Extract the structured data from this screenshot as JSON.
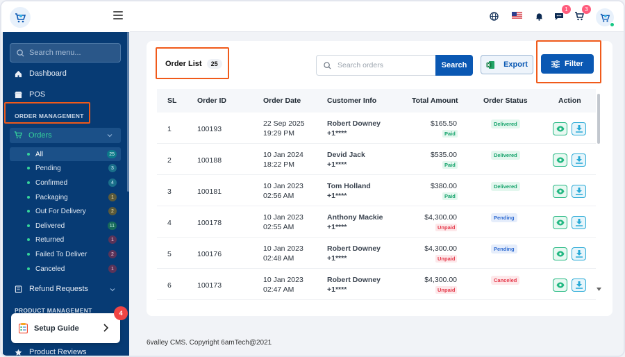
{
  "header": {
    "notifications": {
      "messages_count": "1",
      "cart_count": "3"
    }
  },
  "sidebar": {
    "search_placeholder": "Search menu...",
    "dashboard": "Dashboard",
    "pos": "POS",
    "order_management": "ORDER MANAGEMENT",
    "orders": "Orders",
    "sub_items": [
      {
        "label": "All",
        "count": "25"
      },
      {
        "label": "Pending",
        "count": "3"
      },
      {
        "label": "Confirmed",
        "count": "4"
      },
      {
        "label": "Packaging",
        "count": "1"
      },
      {
        "label": "Out For Delivery",
        "count": "2"
      },
      {
        "label": "Delivered",
        "count": "11"
      },
      {
        "label": "Returned",
        "count": "1"
      },
      {
        "label": "Failed To Deliver",
        "count": "2"
      },
      {
        "label": "Canceled",
        "count": "1"
      }
    ],
    "refund_requests": "Refund Requests",
    "product_management": "PRODUCT MANAGEMENT",
    "product_reviews": "Product Reviews"
  },
  "setup_guide": {
    "label": "Setup Guide",
    "badge": "4"
  },
  "main": {
    "title": "Order List",
    "count": "25",
    "search_placeholder": "Search orders",
    "search_button": "Search",
    "export_button": "Export",
    "filter_button": "Filter",
    "columns": [
      "SL",
      "Order ID",
      "Order Date",
      "Customer Info",
      "Total Amount",
      "Order Status",
      "Action"
    ],
    "rows": [
      {
        "sl": "1",
        "id": "100193",
        "date": "22 Sep 2025",
        "time": "19:29 PM",
        "customer": "Robert Downey",
        "phone": "+1****",
        "amount": "$165.50",
        "payment": "Paid",
        "status": "Delivered"
      },
      {
        "sl": "2",
        "id": "100188",
        "date": "10 Jan 2024",
        "time": "18:22 PM",
        "customer": "Devid Jack",
        "phone": "+1****",
        "amount": "$535.00",
        "payment": "Paid",
        "status": "Delivered"
      },
      {
        "sl": "3",
        "id": "100181",
        "date": "10 Jan 2023",
        "time": "02:56 AM",
        "customer": "Tom Holland",
        "phone": "+1****",
        "amount": "$380.00",
        "payment": "Paid",
        "status": "Delivered"
      },
      {
        "sl": "4",
        "id": "100178",
        "date": "10 Jan 2023",
        "time": "02:55 AM",
        "customer": "Anthony Mackie",
        "phone": "+1****",
        "amount": "$4,300.00",
        "payment": "Unpaid",
        "status": "Pending"
      },
      {
        "sl": "5",
        "id": "100176",
        "date": "10 Jan 2023",
        "time": "02:48 AM",
        "customer": "Robert Downey",
        "phone": "+1****",
        "amount": "$4,300.00",
        "payment": "Unpaid",
        "status": "Pending"
      },
      {
        "sl": "6",
        "id": "100173",
        "date": "10 Jan 2023",
        "time": "02:47 AM",
        "customer": "Robert Downey",
        "phone": "+1****",
        "amount": "$4,300.00",
        "payment": "Unpaid",
        "status": "Canceled"
      }
    ]
  },
  "footer": {
    "text": "6valley CMS. Copyright 6amTech@2021"
  }
}
